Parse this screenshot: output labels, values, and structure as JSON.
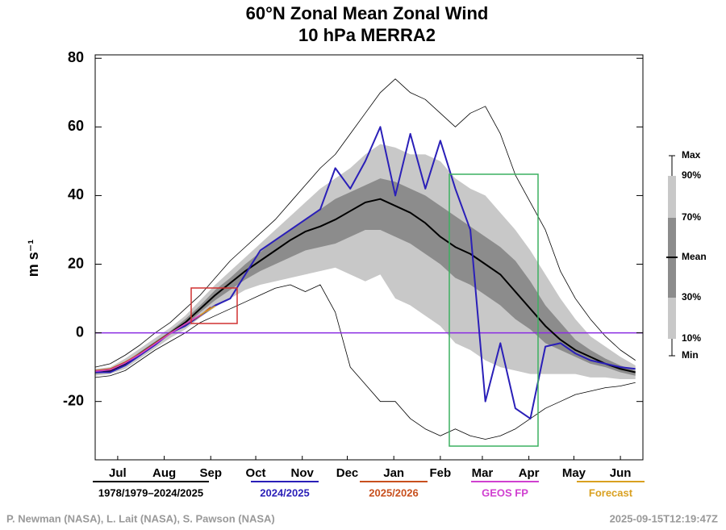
{
  "chart_data": {
    "type": "line",
    "title": "60°N Zonal Mean Zonal Wind",
    "subtitle": "10 hPa   MERRA2",
    "ylabel": "m s⁻¹",
    "xlim": [
      0,
      365
    ],
    "xticks": [
      {
        "value": 15,
        "label": "Jul"
      },
      {
        "value": 46,
        "label": "Aug"
      },
      {
        "value": 77,
        "label": "Sep"
      },
      {
        "value": 107,
        "label": "Oct"
      },
      {
        "value": 138,
        "label": "Nov"
      },
      {
        "value": 168,
        "label": "Dec"
      },
      {
        "value": 199,
        "label": "Jan"
      },
      {
        "value": 230,
        "label": "Feb"
      },
      {
        "value": 258,
        "label": "Mar"
      },
      {
        "value": 289,
        "label": "Apr"
      },
      {
        "value": 319,
        "label": "May"
      },
      {
        "value": 350,
        "label": "Jun"
      }
    ],
    "ylim": [
      -37,
      81
    ],
    "yticks": [
      -20,
      0,
      20,
      40,
      60,
      80
    ],
    "zero_line": {
      "value": 0,
      "color": "#8a2be2"
    },
    "climatology": {
      "name": "1978/1979–2024/2025",
      "color": "#000000",
      "x": [
        0,
        10,
        20,
        30,
        40,
        50,
        60,
        70,
        80,
        90,
        100,
        110,
        120,
        130,
        140,
        150,
        160,
        170,
        180,
        190,
        200,
        210,
        220,
        230,
        240,
        250,
        260,
        270,
        280,
        290,
        300,
        310,
        320,
        330,
        340,
        350,
        360
      ],
      "mean": [
        -11.5,
        -11,
        -9,
        -6,
        -3,
        0,
        3,
        7,
        11,
        14.5,
        18,
        21,
        24,
        27,
        29.5,
        31,
        33,
        35.5,
        38,
        39,
        37,
        35,
        32,
        28,
        25,
        23,
        20,
        17,
        12,
        7,
        2,
        -2,
        -5,
        -7,
        -9,
        -10.5,
        -11.5
      ],
      "p30": [
        -12,
        -11.5,
        -9.5,
        -6.5,
        -3.5,
        -0.5,
        2,
        6,
        9.5,
        12.5,
        15.5,
        18,
        20,
        22,
        24,
        25,
        26,
        28,
        30,
        30,
        28,
        26,
        23,
        20,
        16,
        14,
        11,
        8,
        4,
        1,
        -3,
        -5,
        -7,
        -9,
        -10,
        -11.5,
        -12.5
      ],
      "p70": [
        -11,
        -10.5,
        -8.5,
        -5.5,
        -2.5,
        0.5,
        4,
        8,
        12.5,
        16,
        20,
        23.5,
        27,
        30,
        33,
        36,
        39,
        41,
        43,
        45,
        44,
        42,
        40,
        37,
        34,
        31,
        28,
        25,
        21,
        15,
        8,
        3,
        -2,
        -5,
        -7.5,
        -9.5,
        -11
      ],
      "p10": [
        -12.5,
        -12,
        -10.5,
        -7.5,
        -4.5,
        -1.5,
        1,
        4.5,
        7.5,
        10,
        12.5,
        14,
        15,
        16,
        17,
        18,
        19,
        17,
        15,
        17,
        10,
        8,
        5,
        2,
        -3,
        -5,
        -8,
        -10,
        -11,
        -12,
        -12,
        -12,
        -12,
        -13,
        -13,
        -13.5,
        -13.5
      ],
      "p90": [
        -10.5,
        -10,
        -7.5,
        -4.5,
        -1.5,
        1.5,
        5,
        9.5,
        14,
        18,
        22,
        26,
        30,
        34,
        38,
        42,
        45,
        48,
        52,
        55,
        54,
        52,
        52,
        50,
        45,
        42,
        40,
        35,
        30,
        24,
        17,
        10,
        4,
        -1,
        -4,
        -7,
        -9.5
      ],
      "min": [
        -13,
        -12.5,
        -11,
        -8,
        -5,
        -2.5,
        0,
        3,
        5,
        7,
        9,
        11,
        13,
        14,
        12,
        14,
        6,
        -10,
        -15,
        -20,
        -20,
        -25,
        -28,
        -30,
        -28,
        -30,
        -31,
        -30,
        -28,
        -25,
        -22,
        -20,
        -18,
        -17,
        -16,
        -15.5,
        -14.5
      ],
      "max": [
        -10,
        -9,
        -6.5,
        -3.5,
        0,
        3,
        7,
        11,
        16,
        21,
        25,
        29,
        33,
        38,
        43,
        48,
        52,
        58,
        64,
        70,
        74,
        70,
        68,
        64,
        60,
        64,
        66,
        58,
        46,
        38,
        30,
        18,
        10,
        4,
        -1,
        -5,
        -8
      ]
    },
    "band_legend": [
      "Max",
      "90%",
      "70%",
      "Mean",
      "30%",
      "10%",
      "Min"
    ],
    "series": [
      {
        "name": "2024/2025",
        "color": "#2a1fb8",
        "x": [
          0,
          10,
          20,
          30,
          40,
          50,
          60,
          70,
          80,
          90,
          100,
          110,
          120,
          130,
          140,
          150,
          160,
          170,
          180,
          190,
          200,
          210,
          220,
          230,
          240,
          250,
          260,
          270,
          280,
          290,
          300,
          310,
          320,
          330,
          340,
          350,
          360
        ],
        "values": [
          -11.5,
          -11.5,
          -9.5,
          -6.5,
          -3.5,
          0,
          2,
          5,
          8,
          10,
          17,
          24,
          27,
          30,
          33,
          36,
          48,
          42,
          50,
          60,
          40,
          58,
          42,
          56,
          42,
          30,
          -20,
          -3,
          -22,
          -25,
          -4,
          -3,
          -6,
          -8,
          -9,
          -10,
          -10.5
        ]
      },
      {
        "name": "2025/2026",
        "color": "#c8501e",
        "x": [
          0,
          10,
          20,
          30,
          40,
          50,
          60,
          70,
          77
        ],
        "values": [
          -11,
          -10.5,
          -8.5,
          -6,
          -3,
          0,
          2.5,
          5,
          7.5
        ]
      },
      {
        "name": "GEOS FP",
        "color": "#d040d0",
        "x": [
          0,
          10,
          20,
          30,
          40,
          50,
          60,
          70
        ],
        "values": [
          -11.2,
          -10.8,
          -8.8,
          -6.2,
          -3.2,
          -0.2,
          2.6,
          5.2
        ]
      },
      {
        "name": "Forecast",
        "color": "#d9a020",
        "x": [
          70,
          75,
          80
        ],
        "values": [
          5.2,
          6.5,
          7.8
        ]
      }
    ],
    "credits": "P. Newman (NASA), L. Lait (NASA), S. Pawson (NASA)",
    "timestamp": "2025-09-15T12:19:47Z"
  }
}
